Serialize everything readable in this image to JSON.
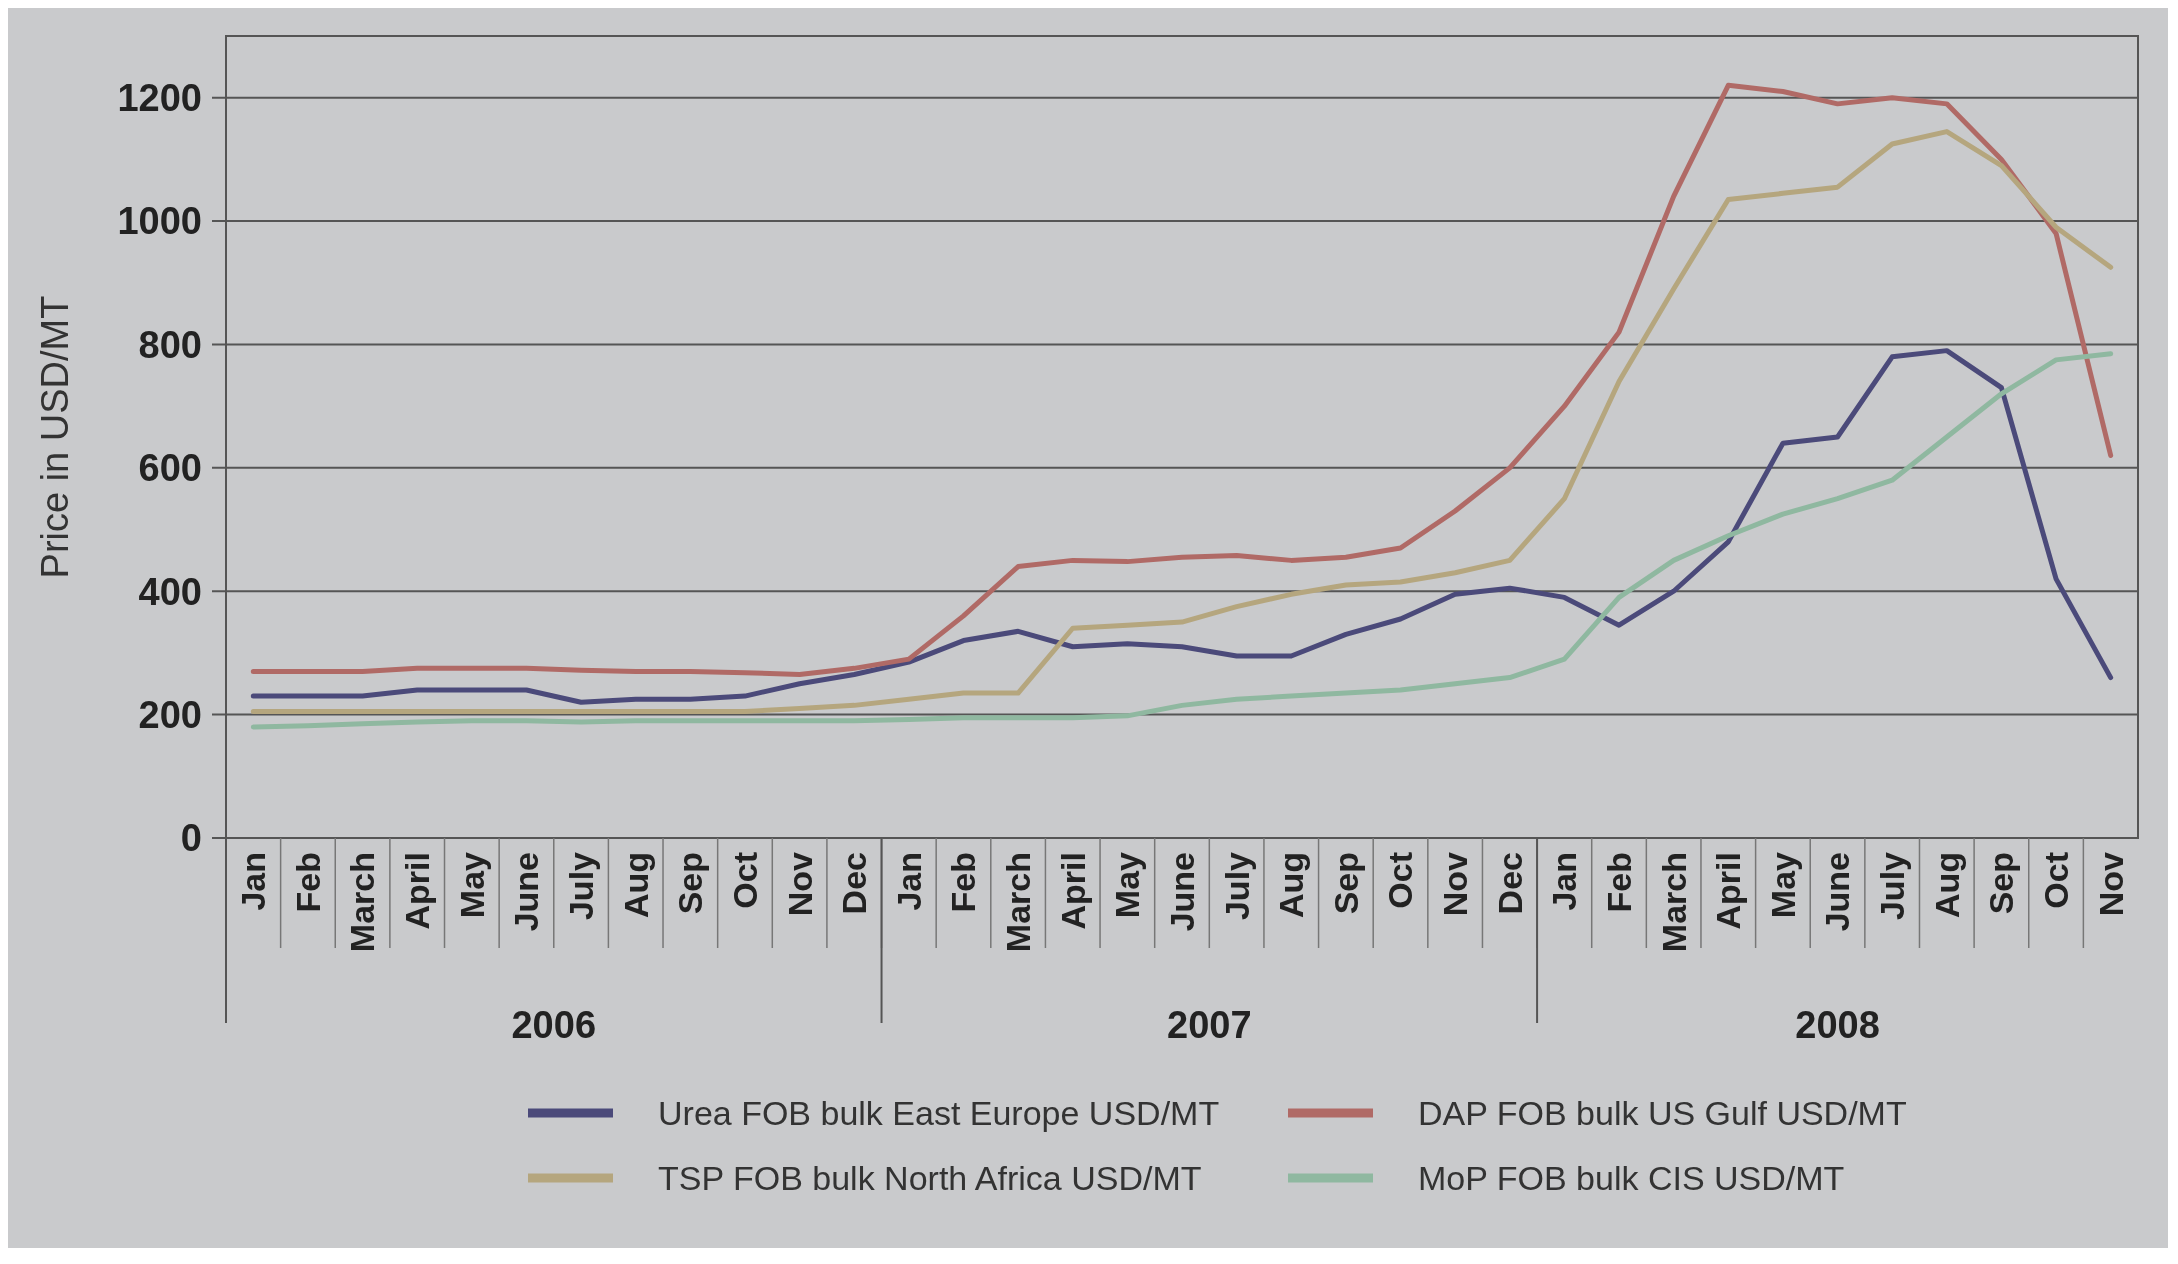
{
  "chart_data": {
    "type": "line",
    "ylabel": "Price in USD/MT",
    "categories": [
      "Jan",
      "Feb",
      "March",
      "April",
      "May",
      "June",
      "July",
      "Aug",
      "Sep",
      "Oct",
      "Nov",
      "Dec",
      "Jan",
      "Feb",
      "March",
      "April",
      "May",
      "June",
      "July",
      "Aug",
      "Sep",
      "Oct",
      "Nov",
      "Dec",
      "Jan",
      "Feb",
      "March",
      "April",
      "May",
      "June",
      "July",
      "Aug",
      "Sep",
      "Oct",
      "Nov"
    ],
    "annotations": [
      "2006",
      "2007",
      "2008"
    ],
    "series": [
      {
        "name": "Urea FOB bulk East Europe USD/MT",
        "color": "#4b4a7a",
        "values": [
          230,
          230,
          230,
          240,
          240,
          240,
          220,
          225,
          225,
          230,
          250,
          265,
          285,
          320,
          335,
          310,
          315,
          310,
          295,
          295,
          330,
          355,
          395,
          405,
          390,
          345,
          400,
          480,
          640,
          650,
          780,
          790,
          730,
          420,
          260
        ]
      },
      {
        "name": "DAP FOB bulk US Gulf USD/MT",
        "color": "#b06a66",
        "values": [
          270,
          270,
          270,
          275,
          275,
          275,
          272,
          270,
          270,
          268,
          265,
          275,
          290,
          360,
          440,
          450,
          448,
          455,
          458,
          450,
          455,
          470,
          530,
          600,
          700,
          820,
          1040,
          1220,
          1210,
          1190,
          1200,
          1190,
          1100,
          980,
          620
        ]
      },
      {
        "name": "TSP FOB bulk North Africa USD/MT",
        "color": "#b5a67e",
        "values": [
          205,
          205,
          205,
          205,
          205,
          205,
          205,
          205,
          205,
          205,
          210,
          215,
          225,
          235,
          235,
          340,
          345,
          350,
          375,
          395,
          410,
          415,
          430,
          450,
          550,
          740,
          890,
          1035,
          1045,
          1055,
          1125,
          1145,
          1090,
          990,
          925
        ]
      },
      {
        "name": "MoP FOB bulk CIS USD/MT",
        "color": "#8fb8a0",
        "values": [
          180,
          182,
          185,
          188,
          190,
          190,
          188,
          190,
          190,
          190,
          190,
          190,
          192,
          195,
          195,
          195,
          198,
          215,
          225,
          230,
          235,
          240,
          250,
          260,
          290,
          390,
          450,
          490,
          525,
          550,
          580,
          650,
          720,
          775,
          785
        ]
      }
    ],
    "ylim": [
      0,
      1300
    ],
    "yticks": [
      0,
      200,
      400,
      600,
      800,
      1000,
      1200
    ],
    "grid": "y",
    "legend": "bottom",
    "marker": "none",
    "line_style": "solid"
  }
}
